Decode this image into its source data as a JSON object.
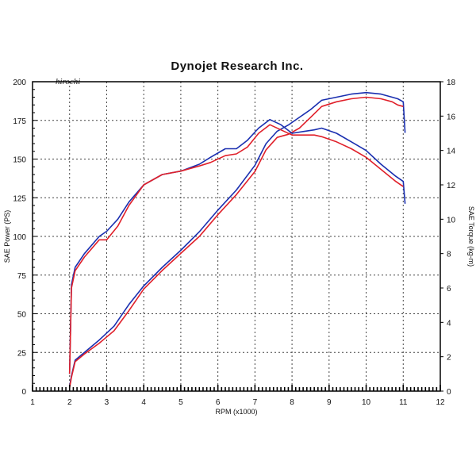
{
  "chart_data": {
    "type": "line",
    "title": "Dynojet  Research  Inc.",
    "watermark": "hirochi",
    "xlabel": "RPM (x1000)",
    "ylabel_left": "SAE Power (PS)",
    "ylabel_right": "SAE Torque (kg-m)",
    "xlim": [
      1,
      12
    ],
    "ylim_left": [
      0,
      200
    ],
    "ylim_right": [
      0,
      18
    ],
    "x_ticks": [
      "1",
      "2",
      "3",
      "4",
      "5",
      "6",
      "7",
      "8",
      "9",
      "10",
      "11",
      "12"
    ],
    "y_ticks_left": [
      "0",
      "25",
      "50",
      "75",
      "100",
      "125",
      "150",
      "175",
      "200"
    ],
    "y_ticks_right": [
      "0",
      "2",
      "4",
      "6",
      "8",
      "10",
      "12",
      "14",
      "16",
      "18"
    ],
    "grid": true,
    "series": [
      {
        "axis": "left",
        "color": "#1a2fb0",
        "x": [
          2.0,
          2.05,
          2.15,
          2.4,
          2.8,
          3.2,
          3.6,
          4.0,
          4.5,
          5.0,
          5.5,
          6.0,
          6.5,
          7.0,
          7.3,
          7.6,
          7.9,
          8.2,
          8.5,
          8.8,
          9.2,
          9.6,
          10.0,
          10.4,
          10.7,
          10.85,
          11.0,
          11.05
        ],
        "y": [
          3,
          10,
          20,
          25,
          33,
          42,
          56,
          68,
          80,
          91,
          103,
          117,
          130,
          146,
          160,
          168,
          172,
          177,
          182,
          188,
          190,
          192,
          193,
          192,
          190,
          189,
          187,
          167
        ]
      },
      {
        "axis": "left",
        "color": "#e0202a",
        "x": [
          2.0,
          2.05,
          2.15,
          2.4,
          2.8,
          3.2,
          3.6,
          4.0,
          4.5,
          5.0,
          5.5,
          6.0,
          6.5,
          7.0,
          7.3,
          7.6,
          7.9,
          8.2,
          8.5,
          8.8,
          9.2,
          9.6,
          10.0,
          10.4,
          10.7,
          10.85,
          11.0
        ],
        "y": [
          2,
          9,
          19,
          24,
          31,
          39,
          52,
          66,
          78,
          89,
          100,
          114,
          127,
          142,
          156,
          164,
          166,
          170,
          177,
          184,
          187,
          189,
          190,
          189,
          187,
          185,
          184
        ]
      },
      {
        "axis": "right",
        "color": "#1a2fb0",
        "x": [
          2.0,
          2.05,
          2.15,
          2.4,
          2.8,
          3.0,
          3.3,
          3.6,
          4.0,
          4.5,
          5.0,
          5.5,
          5.8,
          6.2,
          6.5,
          6.8,
          7.1,
          7.4,
          7.7,
          8.0,
          8.3,
          8.6,
          8.8,
          9.2,
          9.6,
          10.0,
          10.4,
          10.8,
          11.0,
          11.05
        ],
        "y": [
          1,
          6.2,
          7.2,
          8.0,
          9.0,
          9.3,
          10.0,
          11.0,
          12.0,
          12.6,
          12.8,
          13.2,
          13.6,
          14.1,
          14.1,
          14.6,
          15.3,
          15.8,
          15.5,
          15.0,
          15.1,
          15.2,
          15.3,
          15.0,
          14.5,
          14.0,
          13.2,
          12.5,
          12.2,
          10.9
        ]
      },
      {
        "axis": "right",
        "color": "#e0202a",
        "x": [
          2.0,
          2.05,
          2.15,
          2.4,
          2.8,
          3.0,
          3.3,
          3.6,
          4.0,
          4.5,
          5.0,
          5.5,
          5.8,
          6.2,
          6.5,
          6.8,
          7.1,
          7.4,
          7.7,
          8.0,
          8.3,
          8.6,
          8.8,
          9.2,
          9.6,
          10.0,
          10.4,
          10.8,
          11.0
        ],
        "y": [
          1,
          6.0,
          7.0,
          7.8,
          8.8,
          8.8,
          9.6,
          10.8,
          12.0,
          12.6,
          12.8,
          13.1,
          13.3,
          13.7,
          13.8,
          14.2,
          15.0,
          15.5,
          15.2,
          14.9,
          14.9,
          14.9,
          14.8,
          14.5,
          14.1,
          13.6,
          12.9,
          12.2,
          11.9
        ]
      }
    ]
  }
}
